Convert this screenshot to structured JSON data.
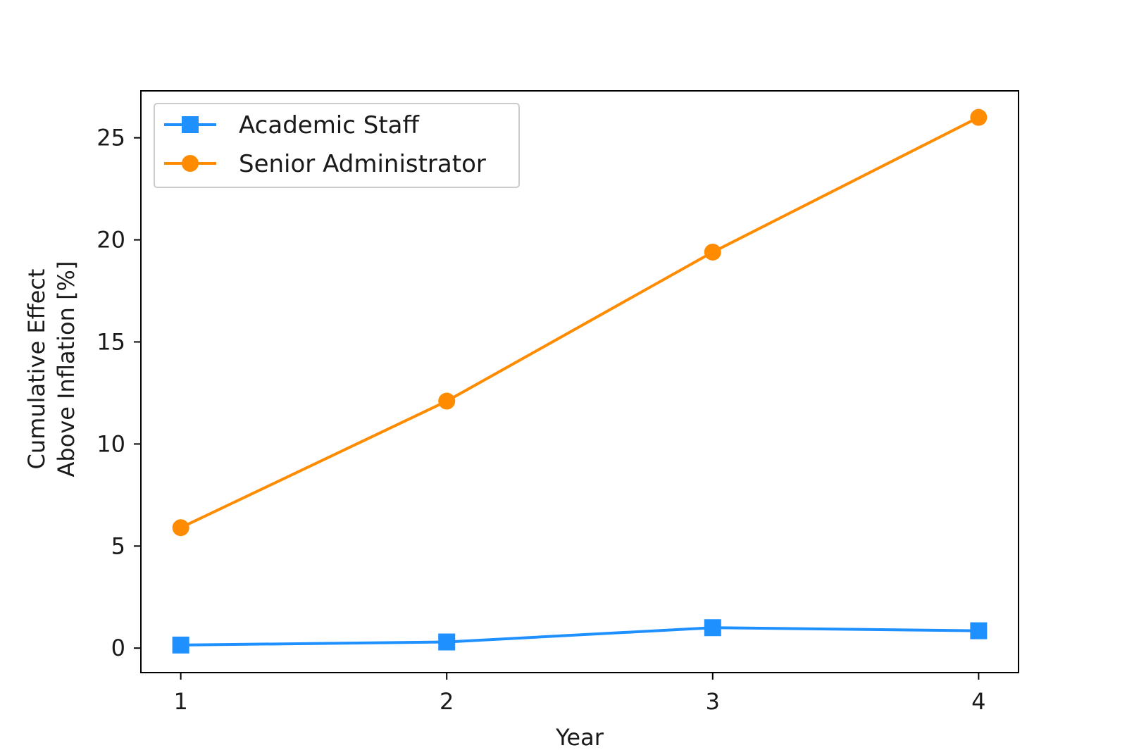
{
  "chart_data": {
    "type": "line",
    "title": "",
    "xlabel": "Year",
    "ylabel_lines": [
      "Cumulative Effect",
      "Above Inflation [%]"
    ],
    "x": [
      1,
      2,
      3,
      4
    ],
    "x_ticks": [
      "1",
      "2",
      "3",
      "4"
    ],
    "xlim": [
      0.85,
      4.15
    ],
    "y_ticks": [
      "0",
      "5",
      "10",
      "15",
      "20",
      "25"
    ],
    "ylim": [
      -1.2,
      27.3
    ],
    "grid": false,
    "legend_position": "top-left",
    "series": [
      {
        "name": "Academic Staff",
        "marker": "square",
        "color": "#1e90ff",
        "values": [
          0.15,
          0.3,
          1.0,
          0.85
        ]
      },
      {
        "name": "Senior Administrator",
        "marker": "circle",
        "color": "#ff8c00",
        "values": [
          5.9,
          12.1,
          19.4,
          26.0
        ]
      }
    ]
  }
}
